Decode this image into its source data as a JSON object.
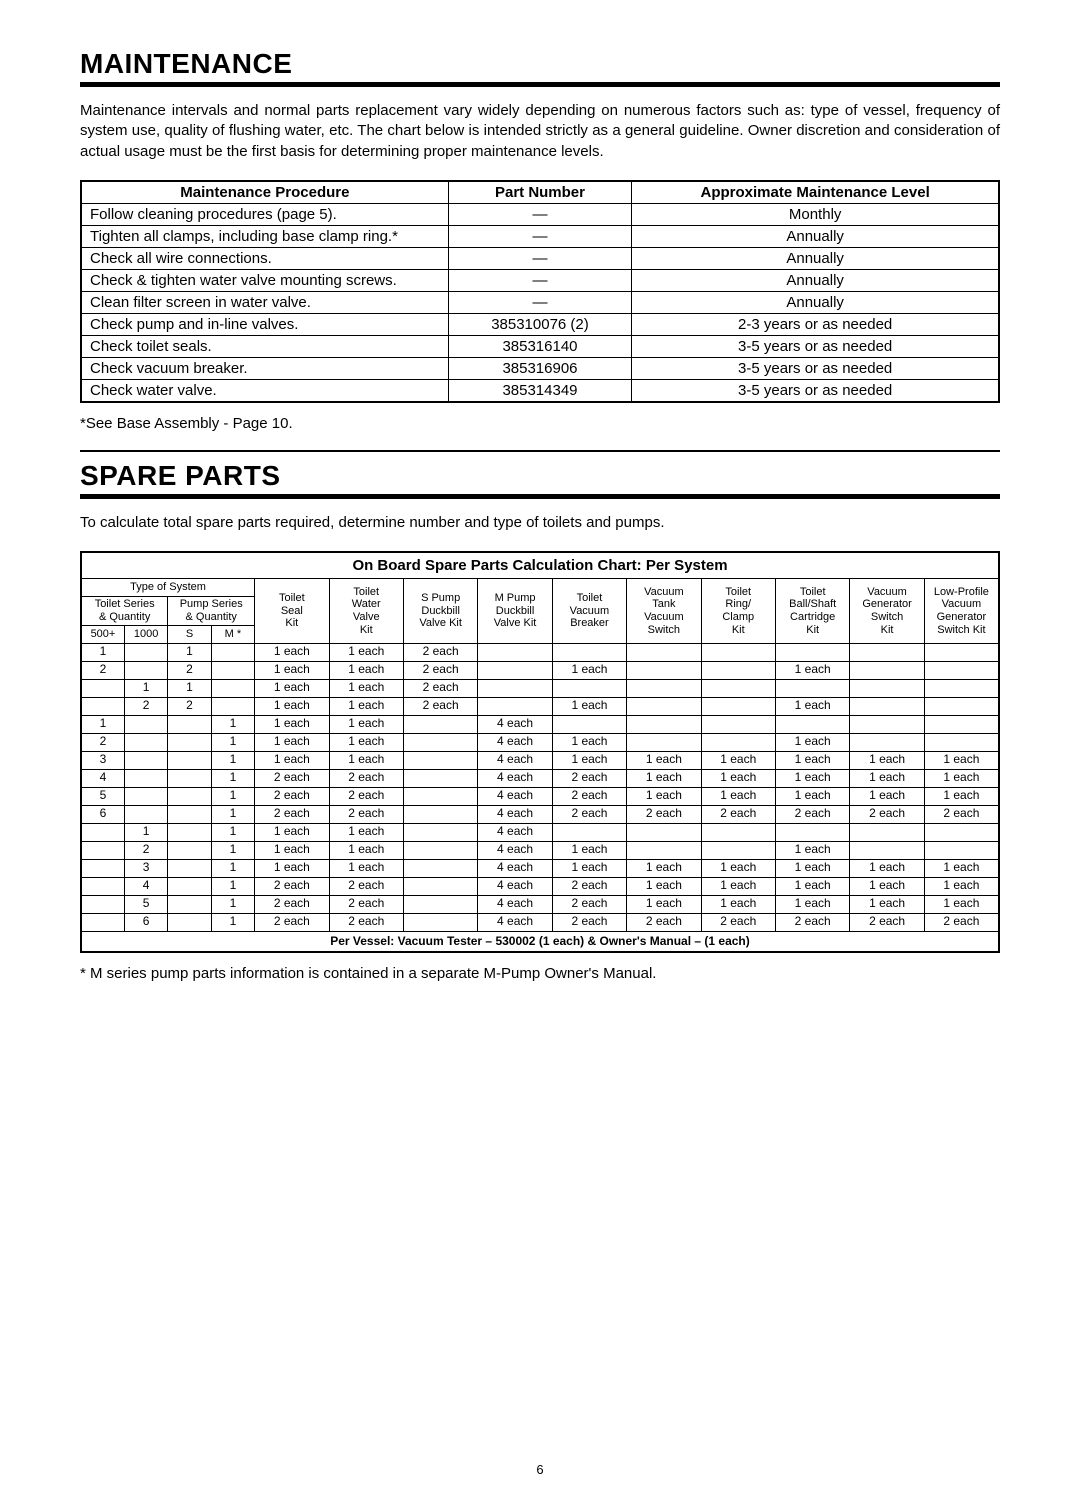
{
  "maintenance": {
    "heading": "MAINTENANCE",
    "intro": "Maintenance intervals and normal parts replacement vary widely depending on numerous factors such as: type of vessel, frequency of system use, quality of flushing water, etc.  The chart below is intended strictly as a general guideline.  Owner discretion and consideration of actual usage must be the first basis for determining proper maintenance levels.",
    "headers": {
      "procedure": "Maintenance Procedure",
      "part": "Part Number",
      "level": "Approximate Maintenance Level"
    },
    "rows": [
      {
        "proc": "Follow cleaning procedures (page 5).",
        "part": "—",
        "level": "Monthly"
      },
      {
        "proc": "Tighten all clamps, including base clamp ring.*",
        "part": "—",
        "level": "Annually"
      },
      {
        "proc": "Check all wire connections.",
        "part": "—",
        "level": "Annually"
      },
      {
        "proc": "Check & tighten water valve mounting screws.",
        "part": "—",
        "level": "Annually"
      },
      {
        "proc": "Clean filter screen in water valve.",
        "part": "—",
        "level": "Annually"
      },
      {
        "proc": "Check pump and in-line valves.",
        "part": "385310076 (2)",
        "level": "2-3 years or as needed"
      },
      {
        "proc": "Check toilet seals.",
        "part": "385316140",
        "level": "3-5 years or as needed"
      },
      {
        "proc": "Check vacuum breaker.",
        "part": "385316906",
        "level": "3-5 years or as needed"
      },
      {
        "proc": "Check water valve.",
        "part": "385314349",
        "level": "3-5 years or as needed"
      }
    ],
    "footnote": "*See Base Assembly - Page 10."
  },
  "spare": {
    "heading": "SPARE PARTS",
    "intro": "To calculate total spare parts required, determine number and type of toilets and pumps.",
    "title": "On Board Spare Parts Calculation Chart: Per System",
    "system_header": {
      "type_of_system": "Type of System",
      "toilet_series": "Toilet Series\n& Quantity",
      "pump_series": "Pump Series\n& Quantity",
      "c500": "500+",
      "c1000": "1000",
      "cS": "S",
      "cM": "M *"
    },
    "part_headers": [
      "Toilet\nSeal\nKit",
      "Toilet\nWater\nValve\nKit",
      "S Pump\nDuckbill\nValve Kit",
      "M Pump\nDuckbill\nValve Kit",
      "Toilet\nVacuum\nBreaker",
      "Vacuum\nTank\nVacuum\nSwitch",
      "Toilet\nRing/\nClamp\nKit",
      "Toilet\nBall/Shaft\nCartridge\nKit",
      "Vacuum\nGenerator\nSwitch\nKit",
      "Low-Profile\nVacuum\nGenerator\nSwitch Kit"
    ],
    "rows": [
      {
        "s": [
          "1",
          "",
          "1",
          ""
        ],
        "p": [
          "1 each",
          "1 each",
          "2 each",
          "",
          "",
          "",
          "",
          "",
          "",
          ""
        ]
      },
      {
        "s": [
          "2",
          "",
          "2",
          ""
        ],
        "p": [
          "1 each",
          "1 each",
          "2 each",
          "",
          "1 each",
          "",
          "",
          "1 each",
          "",
          ""
        ]
      },
      {
        "s": [
          "",
          "1",
          "1",
          ""
        ],
        "p": [
          "1 each",
          "1 each",
          "2 each",
          "",
          "",
          "",
          "",
          "",
          "",
          ""
        ]
      },
      {
        "s": [
          "",
          "2",
          "2",
          ""
        ],
        "p": [
          "1 each",
          "1 each",
          "2 each",
          "",
          "1 each",
          "",
          "",
          "1 each",
          "",
          ""
        ]
      },
      {
        "s": [
          "1",
          "",
          "",
          "1"
        ],
        "p": [
          "1 each",
          "1 each",
          "",
          "4 each",
          "",
          "",
          "",
          "",
          "",
          ""
        ]
      },
      {
        "s": [
          "2",
          "",
          "",
          "1"
        ],
        "p": [
          "1 each",
          "1 each",
          "",
          "4 each",
          "1 each",
          "",
          "",
          "1 each",
          "",
          ""
        ]
      },
      {
        "s": [
          "3",
          "",
          "",
          "1"
        ],
        "p": [
          "1 each",
          "1 each",
          "",
          "4 each",
          "1 each",
          "1 each",
          "1 each",
          "1 each",
          "1 each",
          "1 each"
        ]
      },
      {
        "s": [
          "4",
          "",
          "",
          "1"
        ],
        "p": [
          "2 each",
          "2 each",
          "",
          "4 each",
          "2 each",
          "1 each",
          "1 each",
          "1 each",
          "1 each",
          "1 each"
        ]
      },
      {
        "s": [
          "5",
          "",
          "",
          "1"
        ],
        "p": [
          "2 each",
          "2 each",
          "",
          "4 each",
          "2 each",
          "1 each",
          "1 each",
          "1 each",
          "1 each",
          "1 each"
        ]
      },
      {
        "s": [
          "6",
          "",
          "",
          "1"
        ],
        "p": [
          "2 each",
          "2 each",
          "",
          "4 each",
          "2 each",
          "2 each",
          "2 each",
          "2 each",
          "2 each",
          "2 each"
        ]
      },
      {
        "s": [
          "",
          "1",
          "",
          "1"
        ],
        "p": [
          "1 each",
          "1 each",
          "",
          "4 each",
          "",
          "",
          "",
          "",
          "",
          ""
        ]
      },
      {
        "s": [
          "",
          "2",
          "",
          "1"
        ],
        "p": [
          "1 each",
          "1 each",
          "",
          "4 each",
          "1 each",
          "",
          "",
          "1 each",
          "",
          ""
        ]
      },
      {
        "s": [
          "",
          "3",
          "",
          "1"
        ],
        "p": [
          "1 each",
          "1 each",
          "",
          "4 each",
          "1 each",
          "1 each",
          "1 each",
          "1 each",
          "1 each",
          "1 each"
        ]
      },
      {
        "s": [
          "",
          "4",
          "",
          "1"
        ],
        "p": [
          "2 each",
          "2 each",
          "",
          "4 each",
          "2 each",
          "1 each",
          "1 each",
          "1 each",
          "1 each",
          "1 each"
        ]
      },
      {
        "s": [
          "",
          "5",
          "",
          "1"
        ],
        "p": [
          "2 each",
          "2 each",
          "",
          "4 each",
          "2 each",
          "1 each",
          "1 each",
          "1 each",
          "1 each",
          "1 each"
        ]
      },
      {
        "s": [
          "",
          "6",
          "",
          "1"
        ],
        "p": [
          "2 each",
          "2 each",
          "",
          "4 each",
          "2 each",
          "2 each",
          "2 each",
          "2 each",
          "2 each",
          "2 each"
        ]
      }
    ],
    "footer": "Per Vessel: Vacuum Tester – 530002 (1 each) & Owner's Manual – (1 each)",
    "footnote": "* M series pump parts information is contained in a separate M-Pump Owner's Manual."
  },
  "page_number": "6"
}
